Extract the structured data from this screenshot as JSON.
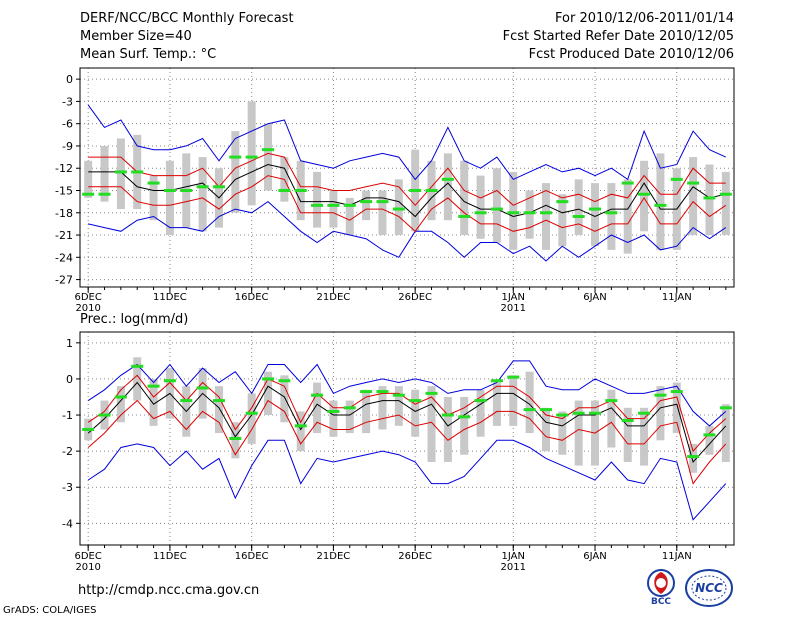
{
  "header": {
    "title": "DERF/NCC/BCC Monthly Forecast",
    "member_size": "Member Size=40",
    "variable": "Mean Surf. Temp.: °C",
    "forecast_period": "For 2010/12/06-2011/01/14",
    "started_date": "Fcst Started Refer Date 2010/12/05",
    "produced_date": "Fcst Produced Date 2010/12/06"
  },
  "footer": {
    "url": "http://cmdp.ncc.cma.gov.cn",
    "credit": "GrADS: COLA/IGES",
    "logo_bcc": "BCC",
    "logo_ncc": "NCC"
  },
  "colors": {
    "envelope_max_min": "#0000dd",
    "spread_band": "#dd0000",
    "ensemble_mean": "#000000",
    "member_box": "#c8c8c8",
    "climatology": "#22dd22"
  },
  "chart_data": [
    {
      "type": "line",
      "title": "Mean Surf. Temp.: °C",
      "xlabel": "",
      "ylabel": "",
      "ylim": [
        -28,
        1.5
      ],
      "yticks": [
        0,
        -3,
        -6,
        -9,
        -12,
        -15,
        -18,
        -21,
        -24,
        -27
      ],
      "xlim": [
        0.5,
        40.5
      ],
      "x": [
        1,
        2,
        3,
        4,
        5,
        6,
        7,
        8,
        9,
        10,
        11,
        12,
        13,
        14,
        15,
        16,
        17,
        18,
        19,
        20,
        21,
        22,
        23,
        24,
        25,
        26,
        27,
        28,
        29,
        30,
        31,
        32,
        33,
        34,
        35,
        36,
        37,
        38,
        39,
        40
      ],
      "xtick_labels": [
        {
          "day": 1,
          "label": "6DEC",
          "sub": "2010"
        },
        {
          "day": 6,
          "label": "11DEC"
        },
        {
          "day": 11,
          "label": "16DEC"
        },
        {
          "day": 16,
          "label": "21DEC"
        },
        {
          "day": 21,
          "label": "26DEC"
        },
        {
          "day": 27,
          "label": "1JAN",
          "sub": "2011"
        },
        {
          "day": 32,
          "label": "6JAN"
        },
        {
          "day": 37,
          "label": "11JAN"
        }
      ],
      "series": [
        {
          "name": "max",
          "values": [
            -3.5,
            -6.5,
            -5.5,
            -9,
            -9.5,
            -9.5,
            -9,
            -8,
            -11,
            -8,
            -7,
            -6,
            -5.5,
            -11,
            -11.5,
            -12,
            -11,
            -10.5,
            -10,
            -10.5,
            -13.5,
            -11,
            -6.5,
            -11,
            -12,
            -10.5,
            -13.5,
            -12.5,
            -11.5,
            -12.5,
            -12,
            -13,
            -12,
            -13.5,
            -7,
            -12,
            -11.5,
            -7,
            -9.5,
            -10.5
          ]
        },
        {
          "name": "upper",
          "values": [
            -10.5,
            -10.5,
            -10.5,
            -12.5,
            -13,
            -13,
            -13,
            -12,
            -14.5,
            -12,
            -11,
            -10,
            -10.5,
            -14.5,
            -14.5,
            -15,
            -15,
            -14.5,
            -14,
            -14.5,
            -17,
            -14.5,
            -12,
            -15,
            -16,
            -15,
            -17,
            -16,
            -15,
            -16,
            -15.5,
            -16.5,
            -15.5,
            -16,
            -13,
            -15.5,
            -15.5,
            -12,
            -14,
            -14
          ]
        },
        {
          "name": "mean",
          "values": [
            -12.5,
            -12.5,
            -12.5,
            -14.5,
            -15,
            -15,
            -14.5,
            -14,
            -16,
            -13.5,
            -12.5,
            -11.5,
            -12,
            -16.5,
            -16.5,
            -16.5,
            -17,
            -16,
            -16,
            -16.5,
            -18.5,
            -16,
            -14,
            -16.5,
            -17.5,
            -17.5,
            -18.5,
            -18,
            -17,
            -18,
            -17.5,
            -18.5,
            -17.5,
            -17.5,
            -14,
            -17.5,
            -17.5,
            -14.5,
            -16,
            -15.5
          ]
        },
        {
          "name": "lower",
          "values": [
            -14.5,
            -14.5,
            -14.5,
            -16.5,
            -17,
            -17,
            -16.5,
            -16,
            -17.5,
            -15.5,
            -14.5,
            -13,
            -13.5,
            -18,
            -18,
            -18,
            -19,
            -17.5,
            -17.5,
            -18.5,
            -20.5,
            -17.5,
            -16,
            -18,
            -19.5,
            -19.5,
            -20.5,
            -20,
            -19,
            -20,
            -19.5,
            -20.5,
            -19.5,
            -19.5,
            -16,
            -19.5,
            -19.5,
            -16.5,
            -18.5,
            -17
          ]
        },
        {
          "name": "min",
          "values": [
            -19.5,
            -20,
            -20.5,
            -19,
            -18.5,
            -20,
            -20,
            -20.5,
            -18.5,
            -17.5,
            -18,
            -16.5,
            -18.5,
            -20.5,
            -22,
            -20.5,
            -21,
            -21.5,
            -23,
            -24,
            -20.5,
            -20.5,
            -22,
            -24,
            -22,
            -22,
            -23.5,
            -22.5,
            -24.5,
            -22.5,
            -24,
            -22.5,
            -21,
            -22,
            -21,
            -23,
            -22.5,
            -20,
            -21.5,
            -20
          ]
        },
        {
          "name": "box_top",
          "values": [
            -11,
            -9,
            -8,
            -7.5,
            -13,
            -11,
            -10,
            -10.5,
            -12,
            -7,
            -3,
            -6,
            -10.5,
            -11,
            -12.5,
            -15,
            -16,
            -15,
            -15,
            -13.5,
            -9.5,
            -11,
            -10,
            -11,
            -13,
            -12,
            -12.5,
            -15,
            -14,
            -15.5,
            -13.5,
            -14,
            -14,
            -13.5,
            -11,
            -10,
            -12,
            -10.5,
            -11.5,
            -12.5
          ]
        },
        {
          "name": "box_bottom",
          "values": [
            -16,
            -16.5,
            -17.5,
            -17.5,
            -19,
            -21,
            -20,
            -20.5,
            -20,
            -18,
            -17,
            -15,
            -16.5,
            -19,
            -20,
            -20,
            -21,
            -19,
            -21,
            -21,
            -20.5,
            -19,
            -19,
            -21,
            -21.5,
            -22,
            -23,
            -21.5,
            -23,
            -22.5,
            -21,
            -22.5,
            -23,
            -23.5,
            -20.5,
            -23,
            -23,
            -21,
            -21,
            -21
          ]
        },
        {
          "name": "climatology",
          "values": [
            -15.5,
            -15.5,
            -12.5,
            -12.5,
            -14,
            -15,
            -15,
            -14.5,
            -14.5,
            -10.5,
            -10.5,
            -9.5,
            -15,
            -15,
            -17,
            -17,
            -17,
            -16.5,
            -16.5,
            -17.5,
            -15,
            -15,
            -13.5,
            -18.5,
            -18,
            -17.5,
            -18,
            -18,
            -18,
            -16.5,
            -18.5,
            -17.5,
            -18,
            -14,
            -15.5,
            -17,
            -13.5,
            -14,
            -16,
            -15.5
          ]
        }
      ]
    },
    {
      "type": "line",
      "title": "Prec.: log(mm/d)",
      "xlabel": "",
      "ylabel": "",
      "ylim": [
        -4.6,
        1.3
      ],
      "yticks": [
        1,
        0,
        -1,
        -2,
        -3,
        -4
      ],
      "xlim": [
        0.5,
        40.5
      ],
      "x": [
        1,
        2,
        3,
        4,
        5,
        6,
        7,
        8,
        9,
        10,
        11,
        12,
        13,
        14,
        15,
        16,
        17,
        18,
        19,
        20,
        21,
        22,
        23,
        24,
        25,
        26,
        27,
        28,
        29,
        30,
        31,
        32,
        33,
        34,
        35,
        36,
        37,
        38,
        39,
        40
      ],
      "xtick_labels": [
        {
          "day": 1,
          "label": "6DEC",
          "sub": "2010"
        },
        {
          "day": 6,
          "label": "11DEC"
        },
        {
          "day": 11,
          "label": "16DEC"
        },
        {
          "day": 16,
          "label": "21DEC"
        },
        {
          "day": 21,
          "label": "26DEC"
        },
        {
          "day": 27,
          "label": "1JAN",
          "sub": "2011"
        },
        {
          "day": 32,
          "label": "6JAN"
        },
        {
          "day": 37,
          "label": "11JAN"
        }
      ],
      "series": [
        {
          "name": "max",
          "values": [
            -0.6,
            -0.3,
            0.1,
            0.4,
            -0.1,
            0.4,
            -0.2,
            0.3,
            -0.1,
            0.2,
            -0.4,
            0.4,
            0.4,
            -0.1,
            0.4,
            -0.4,
            -0.2,
            -0.1,
            0,
            -0.1,
            0,
            -0.1,
            -0.4,
            -0.3,
            -0.3,
            -0.1,
            0.5,
            0.5,
            -0.2,
            -0.3,
            -0.3,
            0,
            -0.2,
            -0.4,
            -0.4,
            -0.3,
            -0.2,
            -0.9,
            -1.3,
            -0.9
          ]
        },
        {
          "name": "upper",
          "values": [
            -1.2,
            -0.9,
            -0.3,
            0.1,
            -0.5,
            -0.1,
            -0.6,
            -0.1,
            -0.5,
            -1.4,
            -0.8,
            0,
            -0.2,
            -1.2,
            -0.4,
            -0.8,
            -0.8,
            -0.5,
            -0.4,
            -0.4,
            -0.7,
            -0.5,
            -1,
            -0.8,
            -0.5,
            -0.2,
            -0.2,
            -0.5,
            -1,
            -1.1,
            -0.8,
            -0.8,
            -0.6,
            -1.1,
            -1.1,
            -0.6,
            -0.5,
            -2,
            -1.5,
            -1.1
          ]
        },
        {
          "name": "mean",
          "values": [
            -1.5,
            -1.1,
            -0.6,
            -0.1,
            -0.7,
            -0.4,
            -0.9,
            -0.4,
            -0.8,
            -1.6,
            -1,
            -0.2,
            -0.5,
            -1.4,
            -0.7,
            -1,
            -1,
            -0.7,
            -0.6,
            -0.6,
            -0.9,
            -0.7,
            -1.3,
            -1,
            -0.7,
            -0.4,
            -0.4,
            -0.7,
            -1.2,
            -1.3,
            -1,
            -1,
            -0.8,
            -1.3,
            -1.3,
            -0.8,
            -0.7,
            -2.3,
            -1.8,
            -1.3
          ]
        },
        {
          "name": "lower",
          "values": [
            -1.9,
            -1.5,
            -1,
            -0.6,
            -1.1,
            -0.9,
            -1.4,
            -0.9,
            -1.2,
            -2.1,
            -1.4,
            -0.6,
            -0.9,
            -1.8,
            -1.2,
            -1.4,
            -1.4,
            -1.2,
            -1.1,
            -1,
            -1.3,
            -1.2,
            -1.7,
            -1.4,
            -1.2,
            -0.9,
            -0.9,
            -1.1,
            -1.6,
            -1.7,
            -1.4,
            -1.5,
            -1.2,
            -1.8,
            -1.8,
            -1.3,
            -1.2,
            -2.9,
            -2.3,
            -1.8
          ]
        },
        {
          "name": "min",
          "values": [
            -2.8,
            -2.5,
            -1.9,
            -1.8,
            -1.9,
            -2.4,
            -2,
            -2.5,
            -2.2,
            -3.3,
            -2.4,
            -1.7,
            -1.7,
            -2.9,
            -2.2,
            -2.3,
            -2.2,
            -2.1,
            -2,
            -2.1,
            -2.3,
            -2.9,
            -2.9,
            -2.7,
            -2.2,
            -1.7,
            -1.7,
            -1.9,
            -2.2,
            -2.4,
            -2.6,
            -2.8,
            -2.3,
            -2.8,
            -2.9,
            -2.2,
            -2.3,
            -3.9,
            -3.4,
            -2.9
          ]
        },
        {
          "name": "box_top",
          "values": [
            -1.1,
            -0.6,
            -0.2,
            0.6,
            0,
            0.3,
            -0.2,
            0.3,
            -0.2,
            -1.2,
            -0.4,
            0.2,
            0.1,
            -0.9,
            -0.1,
            -0.6,
            -0.6,
            -0.3,
            -0.2,
            -0.2,
            -0.3,
            -0.2,
            -0.5,
            -0.5,
            -0.3,
            -0.1,
            0.1,
            0.2,
            -0.8,
            -0.9,
            -0.6,
            -0.6,
            -0.3,
            -0.8,
            -0.8,
            -0.2,
            -0.1,
            -1.8,
            -1.3,
            -0.7
          ]
        },
        {
          "name": "box_bottom",
          "values": [
            -1.7,
            -1.4,
            -1.2,
            -0.6,
            -1.3,
            -1.1,
            -1.6,
            -1.1,
            -1.5,
            -2.2,
            -1.8,
            -1,
            -1.2,
            -2,
            -1.5,
            -1.6,
            -1.5,
            -1.5,
            -1.4,
            -1.3,
            -1.6,
            -2.3,
            -2.3,
            -2.1,
            -1.6,
            -1.3,
            -1.3,
            -1.5,
            -2,
            -2.1,
            -2.4,
            -2.4,
            -1.9,
            -2.3,
            -2.4,
            -1.7,
            -1.5,
            -2.6,
            -2.1,
            -2.3
          ]
        },
        {
          "name": "climatology",
          "values": [
            -1.4,
            -1,
            -0.5,
            0.35,
            -0.2,
            -0.05,
            -0.6,
            -0.25,
            -0.6,
            -1.65,
            -0.95,
            0,
            -0.05,
            -1.3,
            -0.45,
            -0.9,
            -0.8,
            -0.35,
            -0.35,
            -0.45,
            -0.6,
            -0.4,
            -1,
            -1.05,
            -0.6,
            -0.05,
            0.05,
            -0.85,
            -0.85,
            -1,
            -0.95,
            -0.95,
            -0.6,
            -1.15,
            -0.95,
            -0.45,
            -0.35,
            -2.15,
            -1.55,
            -0.8
          ]
        }
      ]
    }
  ]
}
